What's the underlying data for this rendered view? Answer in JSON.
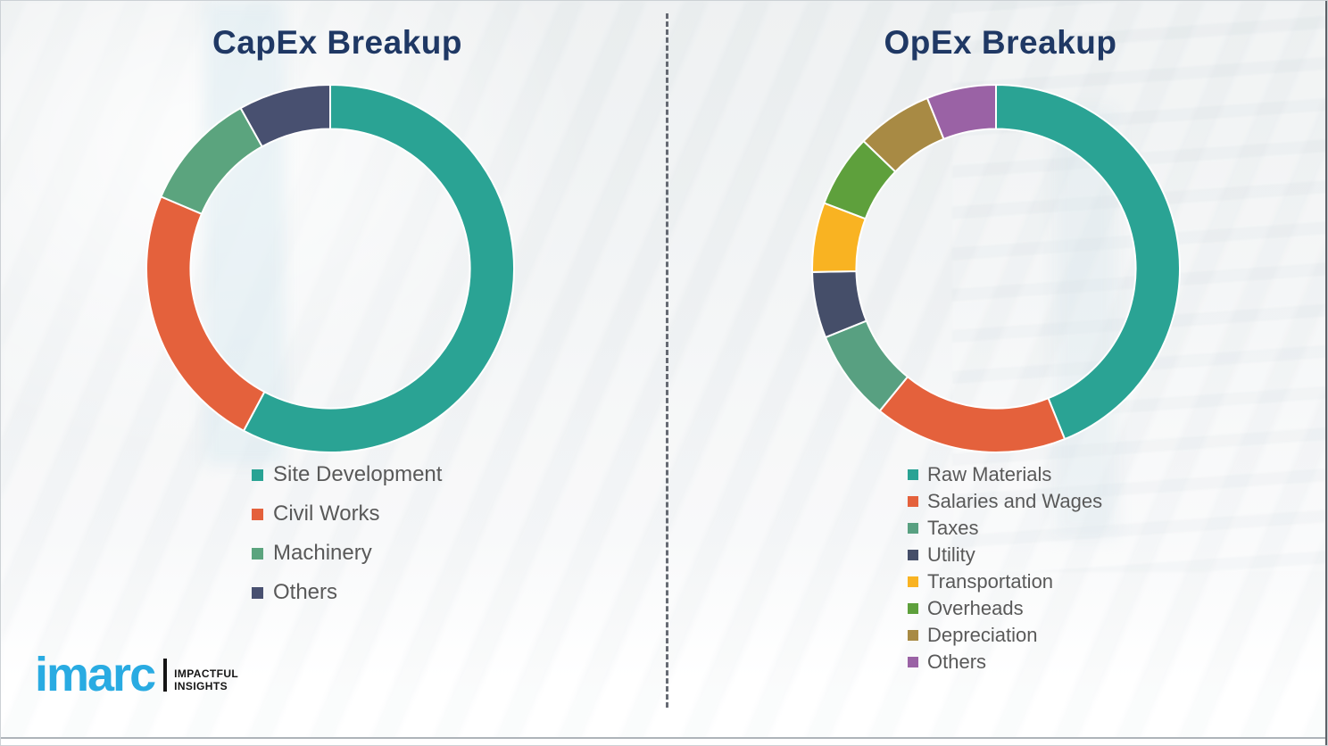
{
  "theme": {
    "background": "#f1f3f4",
    "title_color": "#1f3864",
    "legend_text_color": "#595959",
    "divider_color": "#4d525c",
    "segment_gap_color": "#ffffff",
    "brand_blue": "#29abe2"
  },
  "chart_data": [
    {
      "type": "pie",
      "variant": "donut",
      "title": "CapEx Breakup",
      "unit": "percent_of_total",
      "direction": "clockwise",
      "start_angle_deg": 0,
      "inner_radius_ratio": 0.76,
      "legend_position": "bottom-left",
      "segments": [
        {
          "label": "Site Development",
          "value": 57.8,
          "color": "#2aa394"
        },
        {
          "label": "Civil Works",
          "value": 23.6,
          "color": "#e4613c"
        },
        {
          "label": "Machinery",
          "value": 10.5,
          "color": "#5ba47e"
        },
        {
          "label": "Others",
          "value": 8.1,
          "color": "#485070"
        }
      ]
    },
    {
      "type": "pie",
      "variant": "donut",
      "title": "OpEx Breakup",
      "unit": "percent_of_total",
      "direction": "clockwise",
      "start_angle_deg": 0,
      "inner_radius_ratio": 0.76,
      "legend_position": "bottom-left",
      "segments": [
        {
          "label": "Raw Materials",
          "value": 43.9,
          "color": "#2aa394"
        },
        {
          "label": "Salaries and Wages",
          "value": 17.0,
          "color": "#e4613c"
        },
        {
          "label": "Taxes",
          "value": 8.0,
          "color": "#58a081"
        },
        {
          "label": "Utility",
          "value": 5.8,
          "color": "#454e69"
        },
        {
          "label": "Transportation",
          "value": 6.1,
          "color": "#f9b322"
        },
        {
          "label": "Overheads",
          "value": 6.4,
          "color": "#5ea03c"
        },
        {
          "label": "Depreciation",
          "value": 6.7,
          "color": "#a88a44"
        },
        {
          "label": "Others",
          "value": 6.1,
          "color": "#9a62a5"
        }
      ]
    }
  ],
  "logo": {
    "brand": "imarc",
    "tagline_line1": "IMPACTFUL",
    "tagline_line2": "INSIGHTS"
  }
}
